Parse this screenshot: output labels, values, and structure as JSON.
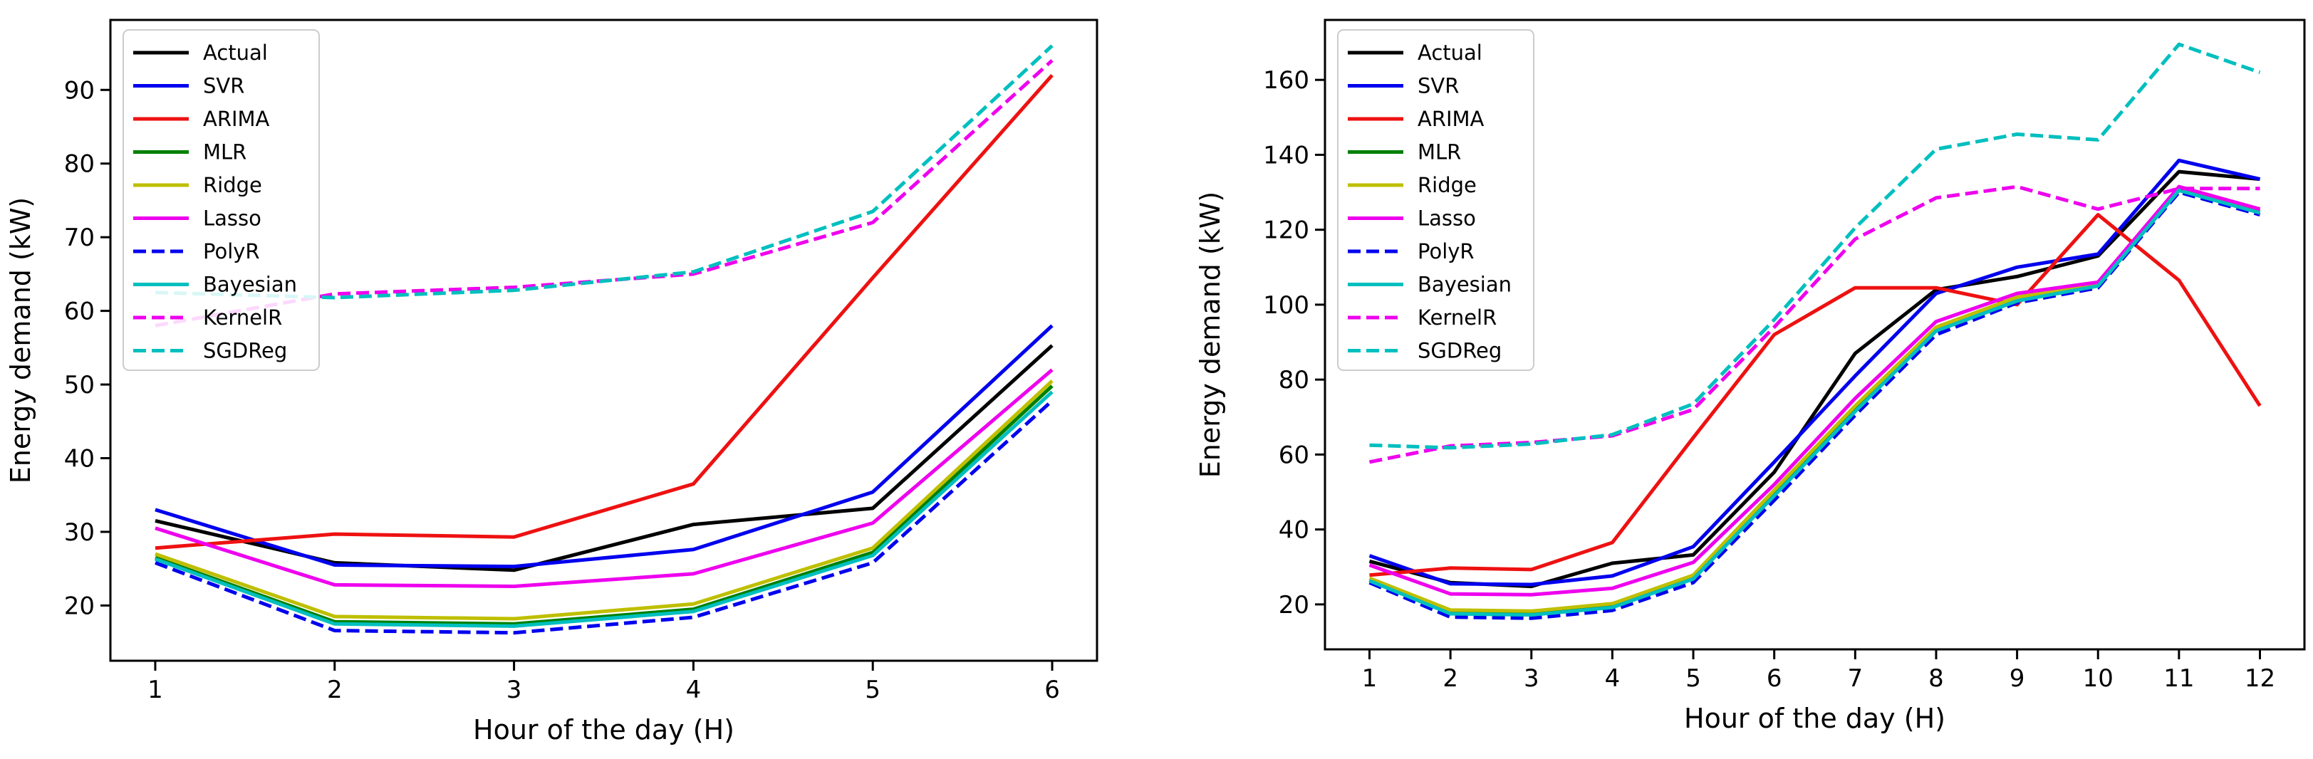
{
  "series_styles": [
    {
      "name": "Actual",
      "color": "#000000",
      "dash": "solid"
    },
    {
      "name": "SVR",
      "color": "#0000ee",
      "dash": "solid"
    },
    {
      "name": "ARIMA",
      "color": "#ee1111",
      "dash": "solid"
    },
    {
      "name": "MLR",
      "color": "#008000",
      "dash": "solid"
    },
    {
      "name": "Ridge",
      "color": "#bfbf00",
      "dash": "solid"
    },
    {
      "name": "Lasso",
      "color": "#ee00ee",
      "dash": "solid"
    },
    {
      "name": "PolyR",
      "color": "#0000ee",
      "dash": "dashed"
    },
    {
      "name": "Bayesian",
      "color": "#00bfbf",
      "dash": "solid"
    },
    {
      "name": "KernelR",
      "color": "#ee00ee",
      "dash": "dashed"
    },
    {
      "name": "SGDReg",
      "color": "#00bfbf",
      "dash": "dashed"
    }
  ],
  "chart_data": [
    {
      "type": "line",
      "xlabel": "Hour of the day (H)",
      "ylabel": "Energy demand (kW)",
      "x": [
        1,
        2,
        3,
        4,
        5,
        6
      ],
      "xlim": [
        0.75,
        6.25
      ],
      "ylim": [
        12.5,
        99.5
      ],
      "yticks": [
        20,
        30,
        40,
        50,
        60,
        70,
        80,
        90
      ],
      "legend": "upper-left",
      "series": [
        {
          "name": "Actual",
          "values": [
            31.5,
            25.8,
            24.8,
            31.0,
            33.2,
            55.3
          ]
        },
        {
          "name": "SVR",
          "values": [
            33.0,
            25.5,
            25.3,
            27.6,
            35.4,
            58.0
          ]
        },
        {
          "name": "ARIMA",
          "values": [
            27.8,
            29.7,
            29.3,
            36.5,
            64.5,
            92.0
          ]
        },
        {
          "name": "MLR",
          "values": [
            26.5,
            17.8,
            17.5,
            19.5,
            27.2,
            49.8
          ]
        },
        {
          "name": "Ridge",
          "values": [
            27.0,
            18.5,
            18.2,
            20.2,
            27.8,
            50.5
          ]
        },
        {
          "name": "Lasso",
          "values": [
            30.5,
            22.8,
            22.6,
            24.3,
            31.2,
            52.0
          ]
        },
        {
          "name": "PolyR",
          "values": [
            25.8,
            16.6,
            16.3,
            18.4,
            25.8,
            47.8
          ]
        },
        {
          "name": "Bayesian",
          "values": [
            26.3,
            17.5,
            17.2,
            19.2,
            26.8,
            49.0
          ]
        },
        {
          "name": "KernelR",
          "values": [
            58.0,
            62.3,
            63.2,
            65.0,
            72.0,
            94.0
          ]
        },
        {
          "name": "SGDReg",
          "values": [
            62.5,
            61.8,
            62.8,
            65.3,
            73.5,
            96.0
          ]
        }
      ]
    },
    {
      "type": "line",
      "xlabel": "Hour of the day (H)",
      "ylabel": "Energy demand (kW)",
      "x": [
        1,
        2,
        3,
        4,
        5,
        6,
        7,
        8,
        9,
        10,
        11,
        12
      ],
      "xlim": [
        0.45,
        12.55
      ],
      "ylim": [
        8,
        176
      ],
      "yticks": [
        20,
        40,
        60,
        80,
        100,
        120,
        140,
        160
      ],
      "legend": "upper-left",
      "series": [
        {
          "name": "Actual",
          "values": [
            31.5,
            25.8,
            24.8,
            31.0,
            33.2,
            55.3,
            87.0,
            104.0,
            107.5,
            113.0,
            135.5,
            133.5
          ]
        },
        {
          "name": "SVR",
          "values": [
            33.0,
            25.5,
            25.3,
            27.6,
            35.4,
            58.0,
            81.0,
            103.0,
            110.0,
            113.5,
            138.5,
            133.5
          ]
        },
        {
          "name": "ARIMA",
          "values": [
            27.8,
            29.7,
            29.3,
            36.5,
            64.5,
            92.0,
            104.5,
            104.5,
            100.0,
            124.0,
            106.5,
            73.0
          ]
        },
        {
          "name": "MLR",
          "values": [
            26.5,
            17.8,
            17.5,
            19.5,
            27.2,
            49.8,
            72.0,
            93.0,
            101.0,
            105.0,
            130.5,
            125.0
          ]
        },
        {
          "name": "Ridge",
          "values": [
            27.0,
            18.5,
            18.2,
            20.2,
            27.8,
            50.5,
            73.0,
            94.0,
            102.0,
            105.5,
            131.0,
            125.5
          ]
        },
        {
          "name": "Lasso",
          "values": [
            30.5,
            22.8,
            22.6,
            24.3,
            31.2,
            52.0,
            75.0,
            95.5,
            103.0,
            106.0,
            131.5,
            125.5
          ]
        },
        {
          "name": "PolyR",
          "values": [
            25.8,
            16.6,
            16.3,
            18.4,
            25.8,
            47.8,
            70.5,
            92.0,
            100.5,
            104.5,
            130.0,
            124.0
          ]
        },
        {
          "name": "Bayesian",
          "values": [
            26.3,
            17.5,
            17.2,
            19.2,
            26.8,
            49.0,
            71.5,
            93.0,
            101.0,
            105.0,
            130.5,
            124.5
          ]
        },
        {
          "name": "KernelR",
          "values": [
            58.0,
            62.3,
            63.2,
            65.0,
            72.0,
            94.0,
            117.5,
            128.5,
            131.5,
            125.5,
            131.0,
            131.0
          ]
        },
        {
          "name": "SGDReg",
          "values": [
            62.5,
            61.8,
            62.8,
            65.3,
            73.5,
            96.0,
            120.5,
            141.5,
            145.5,
            144.0,
            169.5,
            162.0
          ]
        }
      ]
    }
  ]
}
